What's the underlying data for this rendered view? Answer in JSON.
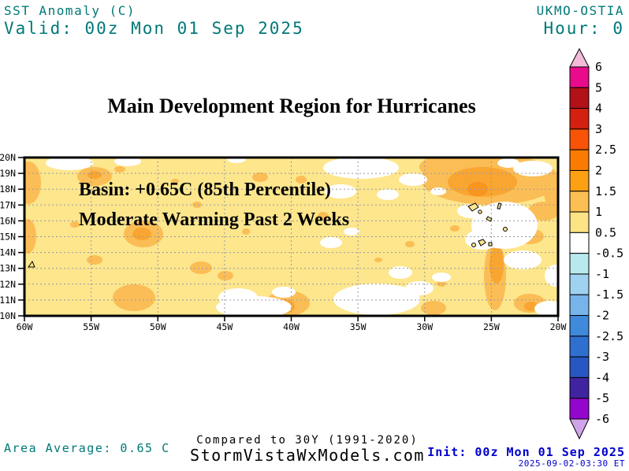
{
  "header": {
    "product": "SST Anomaly (C)",
    "valid": "Valid: 00z Mon 01 Sep 2025",
    "model": "UKMO-OSTIA",
    "hour": "Hour: 0"
  },
  "title": "Main Development Region for Hurricanes",
  "map": {
    "annotation_line1": "Basin: +0.65C (85th Percentile)",
    "annotation_line2": "Moderate Warming Past 2 Weeks",
    "lat_ticks": [
      "20N",
      "19N",
      "18N",
      "17N",
      "16N",
      "15N",
      "14N",
      "13N",
      "12N",
      "11N",
      "10N"
    ],
    "lon_ticks": [
      "60W",
      "55W",
      "50W",
      "45W",
      "40W",
      "35W",
      "30W",
      "25W",
      "20W"
    ]
  },
  "colorbar": {
    "labels": [
      "6",
      "5",
      "4",
      "3",
      "2.5",
      "2",
      "1.5",
      "1",
      "0.5",
      "-0.5",
      "-1",
      "-1.5",
      "-2",
      "-2.5",
      "-3",
      "-4",
      "-5",
      "-6"
    ],
    "segment_colors": [
      "#E90B8B",
      "#B21117",
      "#D42010",
      "#F85306",
      "#FB7B00",
      "#FDA013",
      "#FCBF51",
      "#FDE383",
      "#FFFFFF",
      "#B8E9EE",
      "#9FD2F0",
      "#76B4EA",
      "#3F8ADB",
      "#2F6FD0",
      "#2857C2",
      "#40249F",
      "#9406CC"
    ],
    "arrow_top_color": "#F3BBD7",
    "arrow_bottom_color": "#CFA4E8"
  },
  "footer": {
    "area_average": "Area Average: 0.65 C",
    "compared": "Compared to 30Y (1991-2020)",
    "site": "StormVistaWxModels.com",
    "init": "Init: 00z Mon 01 Sep 2025",
    "timestamp": "2025-09-02-03:30 ET"
  },
  "colors": {
    "header_text": "#007878",
    "init_text": "#0000CC",
    "map_base": "#FDE68C",
    "anomaly_1": "#FBBD55",
    "anomaly_2": "#F9A531",
    "anomaly_3": "#F8951F",
    "grid": "#9999AA"
  },
  "chart_data": {
    "type": "heatmap",
    "title": "Main Development Region for Hurricanes",
    "variable": "SST Anomaly (C)",
    "model": "UKMO-OSTIA",
    "valid_time": "00z Mon 01 Sep 2025",
    "forecast_hour": 0,
    "init_time": "00z Mon 01 Sep 2025",
    "area_average_c": 0.65,
    "basin_anomaly": "+0.65C (85th Percentile)",
    "trend": "Moderate Warming Past 2 Weeks",
    "baseline": "30Y (1991-2020)",
    "lat_range": [
      "10N",
      "20N"
    ],
    "lon_range": [
      "60W",
      "20W"
    ],
    "colorbar_levels": [
      6,
      5,
      4,
      3,
      2.5,
      2,
      1.5,
      1,
      0.5,
      -0.5,
      -1,
      -1.5,
      -2,
      -2.5,
      -3,
      -4,
      -5,
      -6
    ],
    "field_summary": "Basin mostly +0.5 to +1C; patches of +1 to +2C (strongest near 27W 18-19N and along 25W); near-zero white patches near 20N 46W, around Cape Verde islands, and along 11-12N between 45W and 31W"
  }
}
